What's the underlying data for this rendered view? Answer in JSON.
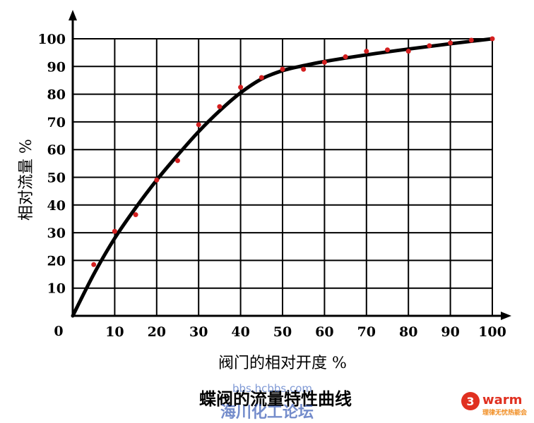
{
  "chart_data": {
    "type": "scatter",
    "title": "蝶阀的流量特性曲线",
    "xlabel": "阀门的相对开度 %",
    "ylabel": "相对流量 %",
    "origin_label": "0",
    "xlim": [
      0,
      100
    ],
    "ylim": [
      0,
      100
    ],
    "x_ticks": [
      "10",
      "20",
      "30",
      "40",
      "50",
      "60",
      "70",
      "80",
      "90",
      "100"
    ],
    "y_ticks": [
      "10",
      "20",
      "30",
      "40",
      "50",
      "60",
      "70",
      "80",
      "90",
      "100"
    ],
    "grid": true,
    "series": [
      {
        "points": [
          [
            5,
            18.5
          ],
          [
            10,
            30.5
          ],
          [
            15,
            36.5
          ],
          [
            20,
            49
          ],
          [
            25,
            56
          ],
          [
            30,
            69
          ],
          [
            35,
            75.5
          ],
          [
            40,
            82.5
          ],
          [
            45,
            86
          ],
          [
            50,
            89
          ],
          [
            55,
            89
          ],
          [
            60,
            91.5
          ],
          [
            65,
            93.5
          ],
          [
            70,
            95.5
          ],
          [
            75,
            96
          ],
          [
            80,
            95.5
          ],
          [
            85,
            97.5
          ],
          [
            90,
            98.5
          ],
          [
            95,
            99.5
          ],
          [
            100,
            100
          ]
        ],
        "color": "#d42020"
      },
      {
        "type": "line",
        "points": [
          [
            0,
            0
          ],
          [
            5,
            15
          ],
          [
            10,
            28
          ],
          [
            15,
            39
          ],
          [
            20,
            49
          ],
          [
            25,
            58
          ],
          [
            30,
            66.5
          ],
          [
            35,
            74
          ],
          [
            40,
            80.5
          ],
          [
            45,
            85.5
          ],
          [
            50,
            88.5
          ],
          [
            55,
            90.3
          ],
          [
            60,
            91.8
          ],
          [
            70,
            94.2
          ],
          [
            80,
            96.3
          ],
          [
            90,
            98.2
          ],
          [
            100,
            100
          ]
        ],
        "color": "#000000"
      }
    ]
  },
  "watermark": {
    "url": "bbs.hcbbs.com",
    "forum": "海川化工论坛",
    "logo_word": "warm",
    "logo_sub": "理律无忧热能会",
    "colors": {
      "logo_red": "#e03020",
      "logo_orange": "#f08a1c"
    }
  }
}
